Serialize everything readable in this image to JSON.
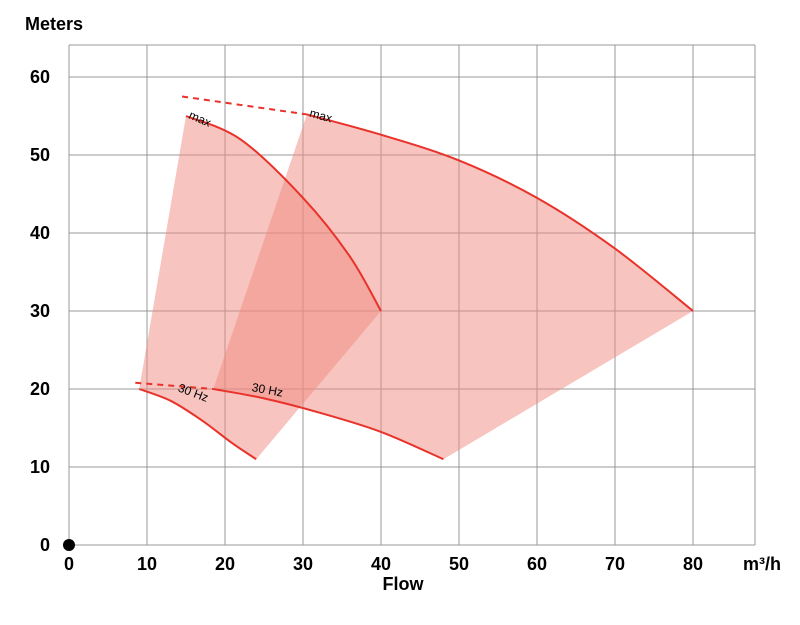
{
  "chart_data": {
    "type": "area",
    "title": "",
    "ylabel": "Meters",
    "xlabel": "Flow",
    "x_unit": "m³/h",
    "xlim": [
      0,
      88
    ],
    "ylim": [
      0,
      64
    ],
    "x_ticks": [
      0,
      10,
      20,
      30,
      40,
      50,
      60,
      70,
      80
    ],
    "y_ticks": [
      0,
      10,
      20,
      30,
      40,
      50,
      60
    ],
    "grid": true,
    "colors": {
      "fill": "#f08a80",
      "line": "#e8322a",
      "origin_dot": "#000000"
    },
    "series": [
      {
        "max_curve": [
          [
            15,
            55
          ],
          [
            22,
            52
          ],
          [
            30,
            44.5
          ],
          [
            36,
            37
          ],
          [
            40,
            30
          ]
        ],
        "min_curve": [
          [
            9,
            20
          ],
          [
            13,
            18.5
          ],
          [
            17,
            16
          ],
          [
            21,
            13
          ],
          [
            24,
            11
          ]
        ],
        "max_label": "max",
        "min_label": "30 Hz",
        "max_extension": [
          [
            14.5,
            57.5
          ],
          [
            30.5,
            55.2
          ]
        ],
        "min_extension": [
          [
            8.5,
            20.8
          ],
          [
            18.5,
            20
          ]
        ]
      },
      {
        "max_curve": [
          [
            30.5,
            55.2
          ],
          [
            40,
            52.6
          ],
          [
            50,
            49.3
          ],
          [
            60,
            44.5
          ],
          [
            70,
            38
          ],
          [
            80,
            30
          ]
        ],
        "min_curve": [
          [
            18.5,
            20
          ],
          [
            25,
            18.8
          ],
          [
            32,
            17
          ],
          [
            40,
            14.5
          ],
          [
            48,
            11
          ]
        ],
        "max_label": "max",
        "min_label": "30 Hz"
      }
    ]
  }
}
